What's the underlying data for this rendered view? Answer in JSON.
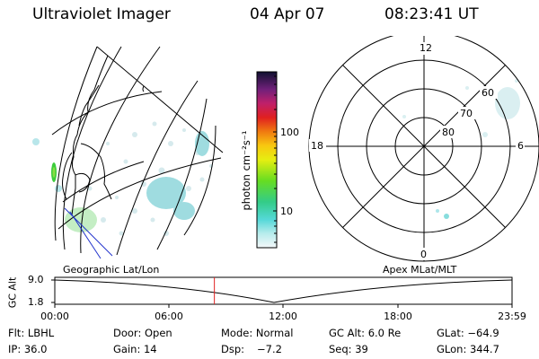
{
  "header": {
    "title": "Ultraviolet Imager",
    "date": "04 Apr 07",
    "time": "08:23:41 UT"
  },
  "colorbar": {
    "unit_label": "photon cm⁻²s⁻¹",
    "ticks": [
      "100",
      "10"
    ]
  },
  "polar_plot": {
    "mlt_labels": [
      "12",
      "18",
      "6",
      "0"
    ],
    "lat_labels": [
      "60",
      "70",
      "80"
    ]
  },
  "projection_labels": {
    "left": "Geographic Lat/Lon",
    "right": "Apex MLat/MLT"
  },
  "altitude_strip": {
    "axis_label": "GC Alt",
    "y_ticks": [
      "9.0",
      "1.8"
    ],
    "time_ticks": [
      "00:00",
      "06:00",
      "12:00",
      "18:00",
      "23:59"
    ],
    "current_time": "08:23:41",
    "current_marker_fraction": 0.349
  },
  "info": {
    "filter": "Flt: LBHL",
    "door": "Door: Open",
    "mode": "Mode: Normal",
    "gc_alt": "GC Alt: 6.0 Re",
    "glat": "GLat: −64.9",
    "ip": "IP: 36.0",
    "gain": "Gain: 14",
    "dsp_label": "Dsp:",
    "dsp_value": "−7.2",
    "seq": "Seq: 39",
    "glon": "GLon: 344.7"
  }
}
